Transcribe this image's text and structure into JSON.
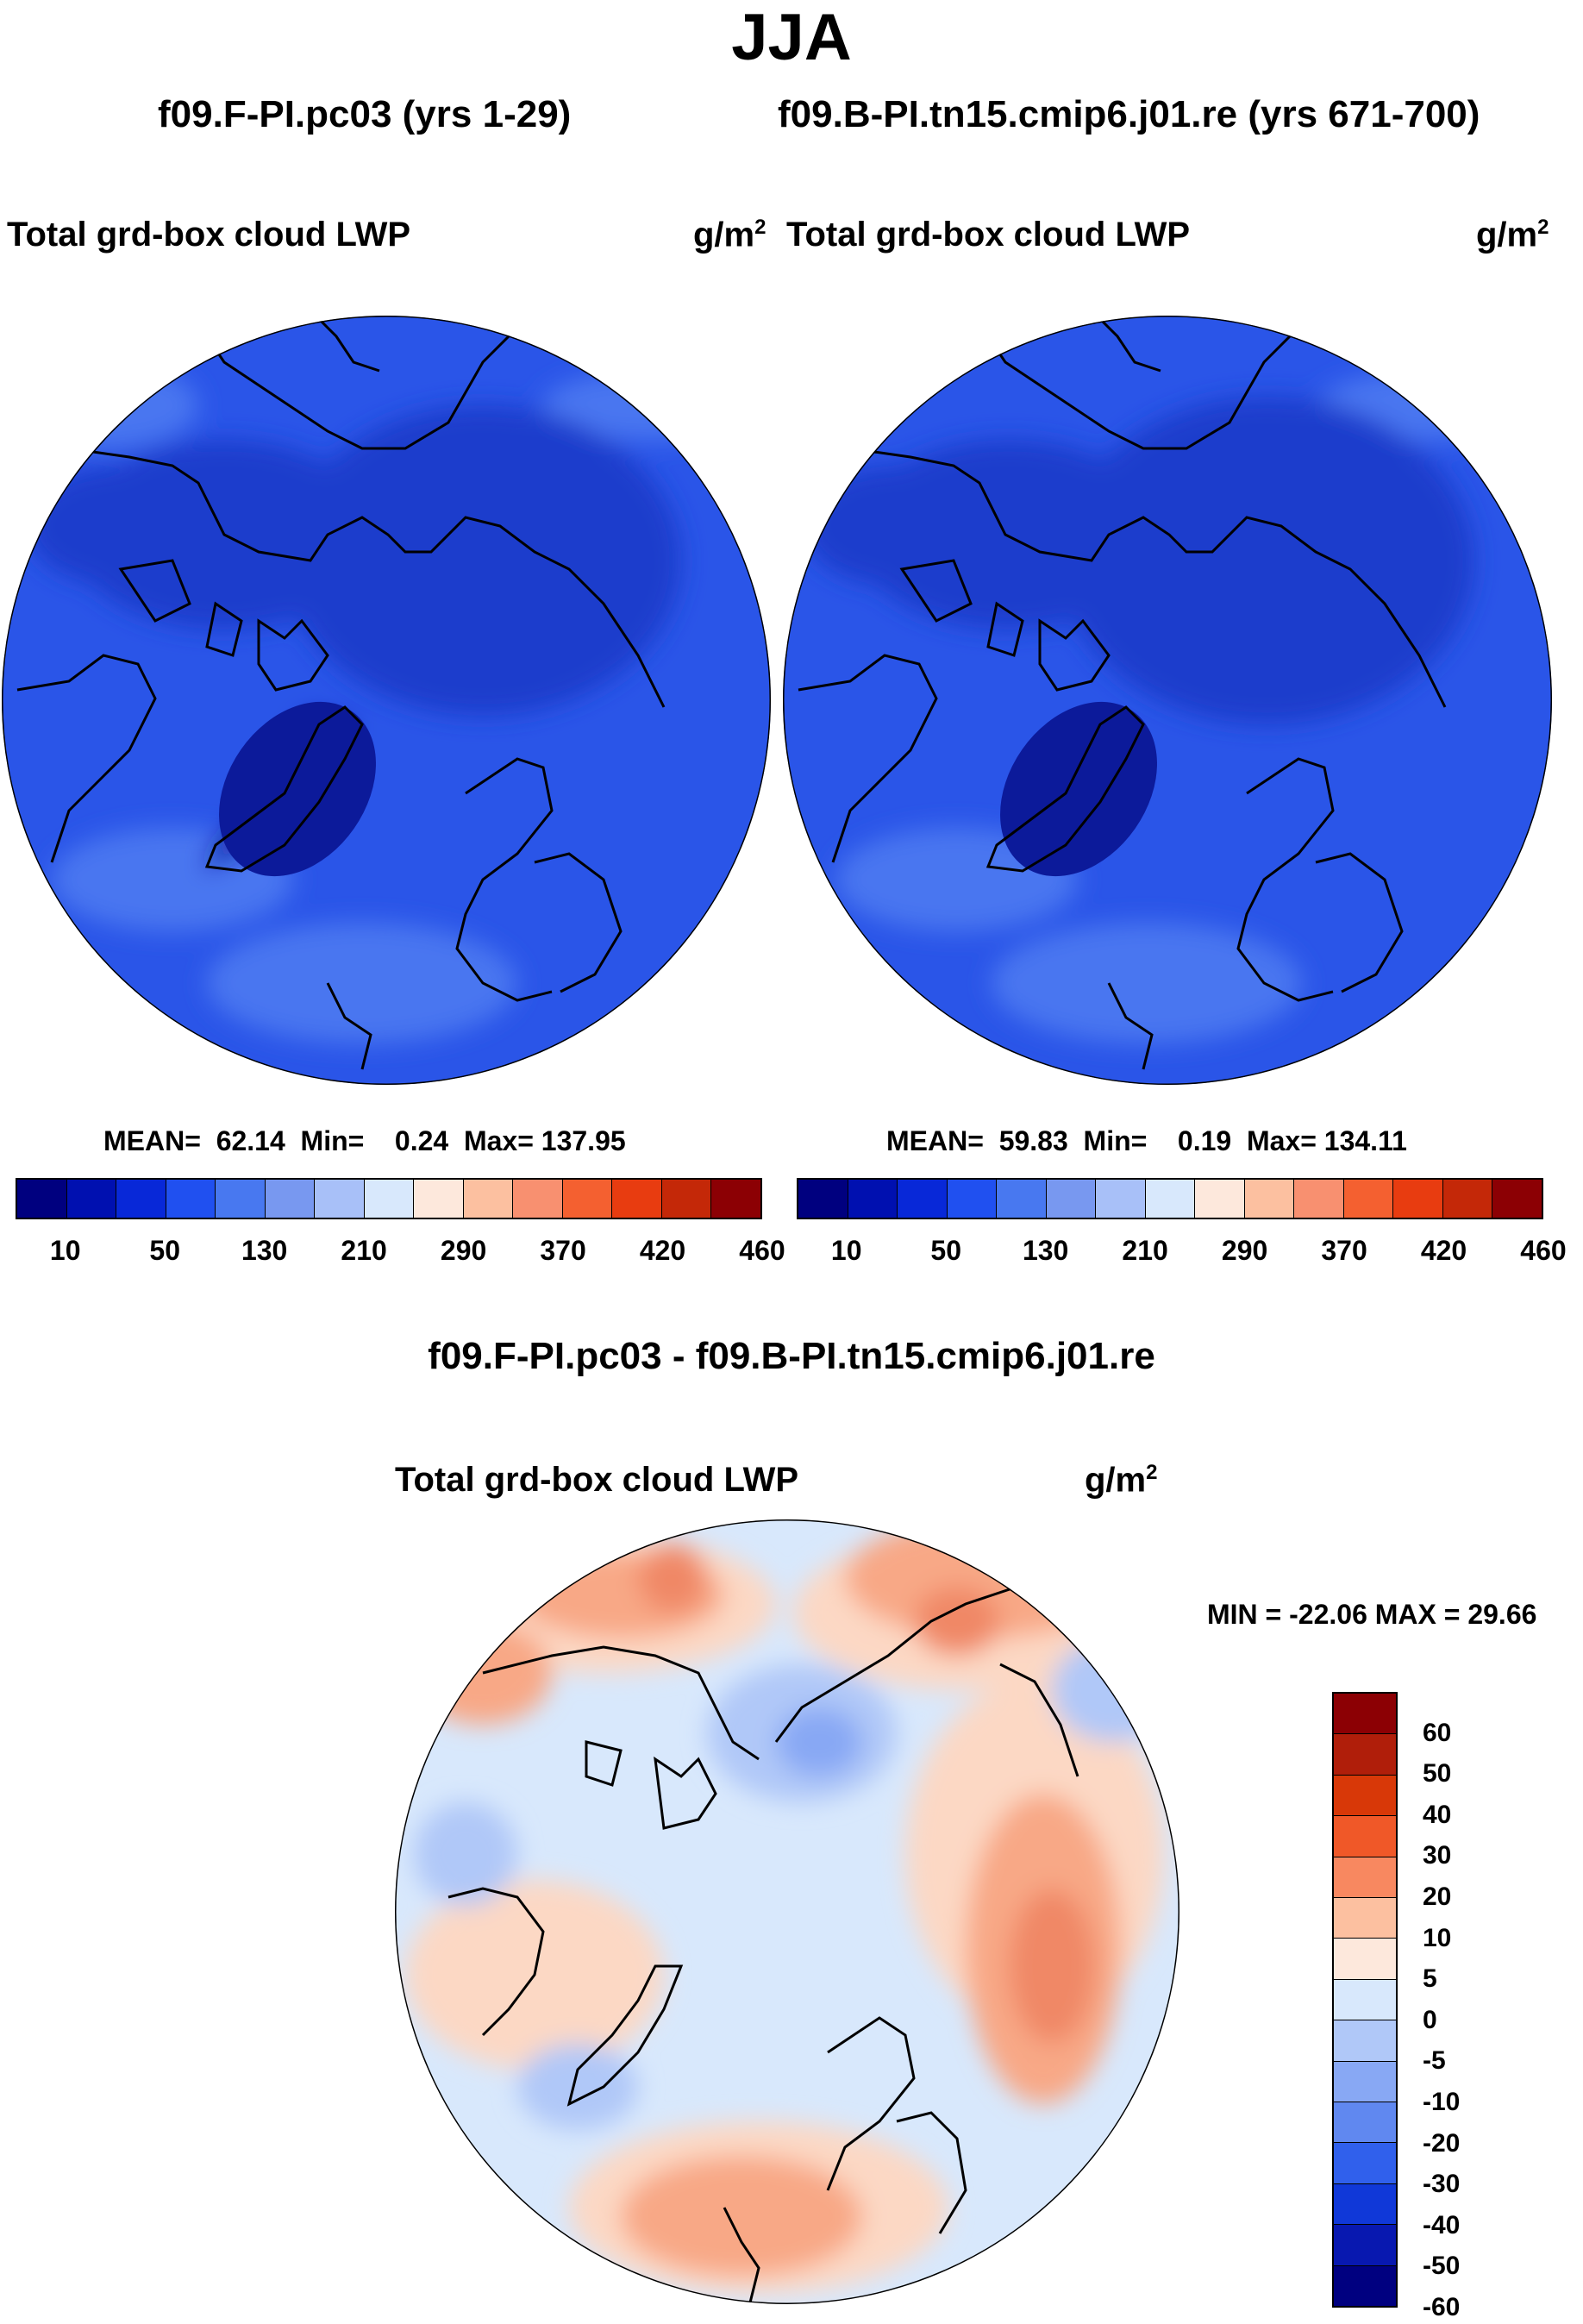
{
  "season": "JJA",
  "panels": [
    {
      "case": "f09.F-PI.pc03 (yrs 1-29)",
      "variable": "Total grd-box cloud LWP",
      "units": "g/m",
      "units_exp": "2",
      "stats": {
        "mean_label": "MEAN=",
        "mean": "62.14",
        "min_label": "Min=",
        "min": "0.24",
        "max_label": "Max=",
        "max": "137.95"
      }
    },
    {
      "case": "f09.B-PI.tn15.cmip6.j01.re (yrs 671-700)",
      "variable": "Total grd-box cloud LWP",
      "units": "g/m",
      "units_exp": "2",
      "stats": {
        "mean_label": "MEAN=",
        "mean": "59.83",
        "min_label": "Min=",
        "min": "0.19",
        "max_label": "Max=",
        "max": "134.11"
      }
    }
  ],
  "abs_colorbar": {
    "colors": [
      "#00007f",
      "#0010b0",
      "#0828d8",
      "#2050f0",
      "#4878f0",
      "#7898f0",
      "#a8c0f8",
      "#d8e8fc",
      "#fde8dc",
      "#fcc0a0",
      "#f89070",
      "#f46030",
      "#e83c10",
      "#c42808",
      "#8c0004"
    ],
    "tick_labels": [
      "10",
      "50",
      "130",
      "210",
      "290",
      "370",
      "420",
      "460"
    ]
  },
  "diff": {
    "title": "f09.F-PI.pc03 - f09.B-PI.tn15.cmip6.j01.re",
    "variable": "Total grd-box cloud LWP",
    "units": "g/m",
    "units_exp": "2",
    "range_text": "MIN = -22.06 MAX =  29.66"
  },
  "diff_colorbar": {
    "colors": [
      "#8c0004",
      "#b01e0a",
      "#d83808",
      "#f05828",
      "#f88860",
      "#fcc0a0",
      "#fde8dc",
      "#d8e8fc",
      "#b0c8f8",
      "#88a8f4",
      "#6088f0",
      "#3060ec",
      "#1038d8",
      "#0818b0",
      "#000080"
    ],
    "tick_labels": [
      "60",
      "50",
      "40",
      "30",
      "20",
      "10",
      "5",
      "0",
      "-5",
      "-10",
      "-20",
      "-30",
      "-40",
      "-50",
      "-60"
    ]
  },
  "map_colors": {
    "ocean_base": "#2a55e8",
    "arctic_mid": "#1c3ccc",
    "greenland": "#0c1a9a",
    "lighter": "#4a76f0",
    "coast": "#000000",
    "diff_base": "#d8e8fc",
    "diff_pos_light": "#fcd8c4",
    "diff_pos": "#f8a886",
    "diff_pos_strong": "#f08866",
    "diff_neg": "#b0c8f8",
    "diff_neg_strong": "#88a8f4"
  }
}
